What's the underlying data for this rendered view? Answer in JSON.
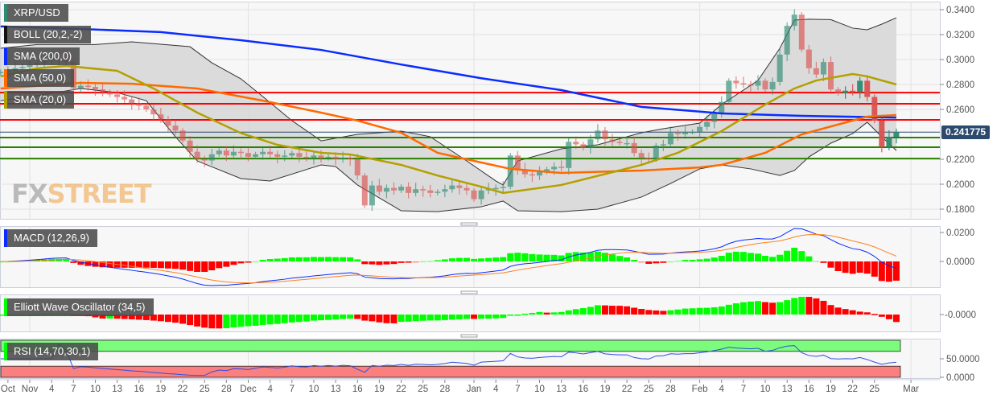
{
  "legend": {
    "symbol": {
      "label": "XRP/USD",
      "color": "#2e8b72"
    },
    "boll": {
      "label": "BOLL (20,2,-2)",
      "color": "#111111"
    },
    "sma200": {
      "label": "SMA (200,0)",
      "color": "#0a2cff"
    },
    "sma50": {
      "label": "SMA (50,0)",
      "color": "#ff6a00"
    },
    "sma20": {
      "label": "SMA (20,0)",
      "color": "#b3a000"
    },
    "macd": {
      "label": "MACD (12,26,9)",
      "color": "#0a2cff"
    },
    "ewo": {
      "label": "Elliott Wave Oscillator (34,5)",
      "color": "#00ff00"
    },
    "rsi": {
      "label": "RSI (14,70,30,1)",
      "color": "#00ff00"
    }
  },
  "watermark": {
    "part1": "FX",
    "part2": "STREET"
  },
  "colors": {
    "up": "#2e8b72",
    "down": "#d9534f",
    "hist_up": "#00ff00",
    "hist_down": "#ff0000",
    "resistance": "#ff0000",
    "support": "#2a8000",
    "price_line": "#2c4a6e"
  },
  "chart_data": {
    "type": "candlestick",
    "symbol": "XRP/USD",
    "interval": "daily",
    "start_date": "2019-10-28",
    "closes": [
      0.29,
      0.291,
      0.293,
      0.294,
      0.296,
      0.297,
      0.299,
      0.301,
      0.3,
      0.298,
      0.277,
      0.279,
      0.278,
      0.276,
      0.274,
      0.272,
      0.27,
      0.268,
      0.265,
      0.263,
      0.26,
      0.256,
      0.252,
      0.247,
      0.243,
      0.235,
      0.226,
      0.22,
      0.219,
      0.224,
      0.227,
      0.223,
      0.226,
      0.225,
      0.222,
      0.224,
      0.226,
      0.224,
      0.222,
      0.223,
      0.225,
      0.222,
      0.221,
      0.223,
      0.221,
      0.222,
      0.22,
      0.221,
      0.22,
      0.207,
      0.183,
      0.199,
      0.194,
      0.197,
      0.195,
      0.198,
      0.193,
      0.196,
      0.195,
      0.193,
      0.194,
      0.196,
      0.199,
      0.197,
      0.195,
      0.188,
      0.195,
      0.196,
      0.197,
      0.198,
      0.223,
      0.212,
      0.208,
      0.207,
      0.21,
      0.212,
      0.214,
      0.213,
      0.234,
      0.232,
      0.229,
      0.236,
      0.243,
      0.236,
      0.234,
      0.233,
      0.233,
      0.225,
      0.221,
      0.22,
      0.231,
      0.232,
      0.241,
      0.24,
      0.242,
      0.242,
      0.246,
      0.25,
      0.257,
      0.266,
      0.283,
      0.281,
      0.28,
      0.279,
      0.283,
      0.276,
      0.282,
      0.304,
      0.327,
      0.336,
      0.308,
      0.293,
      0.288,
      0.298,
      0.276,
      0.273,
      0.275,
      0.274,
      0.283,
      0.27,
      0.251,
      0.23,
      0.238,
      0.241775
    ],
    "current_price": "0.241775",
    "y_axis": {
      "range": [
        0.17,
        0.345
      ],
      "ticks": [
        "0.3400",
        "0.3200",
        "0.3000",
        "0.2800",
        "0.2600",
        "0.2200",
        "0.2000",
        "0.1800"
      ]
    },
    "horizontal_levels": {
      "resistance": [
        0.2735,
        0.2645,
        0.2516
      ],
      "support": [
        0.2374,
        0.2297,
        0.2206
      ]
    },
    "indicators": {
      "sma200": [
        [
          "2019-10-28",
          0.3265
        ],
        [
          "2019-11-08",
          0.3245
        ],
        [
          "2019-11-19",
          0.322
        ],
        [
          "2019-11-30",
          0.3155
        ],
        [
          "2019-12-11",
          0.3077
        ],
        [
          "2019-12-22",
          0.296
        ],
        [
          "2020-01-02",
          0.285
        ],
        [
          "2020-01-13",
          0.2755
        ],
        [
          "2020-01-24",
          0.262
        ],
        [
          "2020-02-04",
          0.2568
        ],
        [
          "2020-02-15",
          0.2548
        ],
        [
          "2020-02-28",
          0.2535
        ]
      ],
      "sma50": [
        [
          "2019-10-28",
          0.2768
        ],
        [
          "2019-11-08",
          0.2813
        ],
        [
          "2019-11-15",
          0.2806
        ],
        [
          "2019-11-24",
          0.2768
        ],
        [
          "2019-12-03",
          0.267
        ],
        [
          "2019-12-11",
          0.2574
        ],
        [
          "2019-12-16",
          0.251
        ],
        [
          "2019-12-22",
          0.2413
        ],
        [
          "2019-12-27",
          0.2252
        ],
        [
          "2020-01-02",
          0.2174
        ],
        [
          "2020-01-06",
          0.2123
        ],
        [
          "2020-01-13",
          0.209
        ],
        [
          "2020-01-24",
          0.211
        ],
        [
          "2020-02-01",
          0.2135
        ],
        [
          "2020-02-04",
          0.2155
        ],
        [
          "2020-02-10",
          0.2252
        ],
        [
          "2020-02-15",
          0.24
        ],
        [
          "2020-02-24",
          0.2542
        ],
        [
          "2020-02-28",
          0.2555
        ]
      ],
      "sma20": [
        [
          "2019-10-28",
          0.2865
        ],
        [
          "2019-11-02",
          0.293
        ],
        [
          "2019-11-06",
          0.2948
        ],
        [
          "2019-11-13",
          0.291
        ],
        [
          "2019-11-18",
          0.2768
        ],
        [
          "2019-11-24",
          0.2574
        ],
        [
          "2019-11-30",
          0.241
        ],
        [
          "2019-12-05",
          0.2316
        ],
        [
          "2019-12-11",
          0.2252
        ],
        [
          "2019-12-15",
          0.2239
        ],
        [
          "2019-12-22",
          0.2155
        ],
        [
          "2019-12-27",
          0.207
        ],
        [
          "2020-01-02",
          0.198
        ],
        [
          "2020-01-05",
          0.193
        ],
        [
          "2020-01-13",
          0.1994
        ],
        [
          "2020-01-24",
          0.2155
        ],
        [
          "2020-01-29",
          0.2252
        ],
        [
          "2020-02-04",
          0.2426
        ],
        [
          "2020-02-10",
          0.2639
        ],
        [
          "2020-02-14",
          0.2768
        ],
        [
          "2020-02-17",
          0.2832
        ],
        [
          "2020-02-22",
          0.2884
        ],
        [
          "2020-02-24",
          0.2865
        ],
        [
          "2020-02-28",
          0.28
        ]
      ],
      "boll_upper": [
        [
          "2019-10-28",
          0.309
        ],
        [
          "2019-11-02",
          0.312
        ],
        [
          "2019-11-10",
          0.312
        ],
        [
          "2019-11-15",
          0.3142
        ],
        [
          "2019-11-23",
          0.3103
        ],
        [
          "2019-11-26",
          0.2974
        ],
        [
          "2019-11-30",
          0.2845
        ],
        [
          "2019-12-03",
          0.2703
        ],
        [
          "2019-12-07",
          0.251
        ],
        [
          "2019-12-11",
          0.2348
        ],
        [
          "2019-12-16",
          0.24
        ],
        [
          "2019-12-22",
          0.2426
        ],
        [
          "2019-12-26",
          0.2381
        ],
        [
          "2019-12-31",
          0.2187
        ],
        [
          "2020-01-04",
          0.2026
        ],
        [
          "2020-01-05",
          0.1994
        ],
        [
          "2020-01-07",
          0.2187
        ],
        [
          "2020-01-13",
          0.2284
        ],
        [
          "2020-01-18",
          0.2316
        ],
        [
          "2020-01-24",
          0.2413
        ],
        [
          "2020-01-27",
          0.2445
        ],
        [
          "2020-02-01",
          0.249
        ],
        [
          "2020-02-04",
          0.2639
        ],
        [
          "2020-02-09",
          0.2832
        ],
        [
          "2020-02-12",
          0.309
        ],
        [
          "2020-02-14",
          0.3316
        ],
        [
          "2020-02-16",
          0.3323
        ],
        [
          "2020-02-19",
          0.332
        ],
        [
          "2020-02-22",
          0.3252
        ],
        [
          "2020-02-24",
          0.3239
        ],
        [
          "2020-02-26",
          0.3284
        ],
        [
          "2020-02-28",
          0.3335
        ]
      ],
      "boll_lower": [
        [
          "2019-10-28",
          0.267
        ],
        [
          "2019-11-02",
          0.271
        ],
        [
          "2019-11-08",
          0.2768
        ],
        [
          "2019-11-13",
          0.2735
        ],
        [
          "2019-11-17",
          0.267
        ],
        [
          "2019-11-21",
          0.238
        ],
        [
          "2019-11-24",
          0.2187
        ],
        [
          "2019-11-30",
          0.2045
        ],
        [
          "2019-12-04",
          0.2026
        ],
        [
          "2019-12-11",
          0.2155
        ],
        [
          "2019-12-13",
          0.2142
        ],
        [
          "2019-12-16",
          0.1994
        ],
        [
          "2019-12-22",
          0.1787
        ],
        [
          "2019-12-27",
          0.178
        ],
        [
          "2020-01-02",
          0.1819
        ],
        [
          "2020-01-05",
          0.1865
        ],
        [
          "2020-01-07",
          0.1787
        ],
        [
          "2020-01-13",
          0.178
        ],
        [
          "2020-01-18",
          0.18
        ],
        [
          "2020-01-24",
          0.1897
        ],
        [
          "2020-01-28",
          0.2006
        ],
        [
          "2020-02-01",
          0.2123
        ],
        [
          "2020-02-04",
          0.2155
        ],
        [
          "2020-02-08",
          0.2123
        ],
        [
          "2020-02-12",
          0.207
        ],
        [
          "2020-02-14",
          0.211
        ],
        [
          "2020-02-16",
          0.2219
        ],
        [
          "2020-02-19",
          0.2329
        ],
        [
          "2020-02-22",
          0.2406
        ],
        [
          "2020-02-24",
          0.2497
        ],
        [
          "2020-02-26",
          0.238
        ],
        [
          "2020-02-28",
          0.227
        ]
      ]
    },
    "macd_axis_ticks": [
      "0.0200",
      "0.0000"
    ],
    "ewo_axis_ticks": [
      "-0.0000"
    ],
    "rsi_axis_ticks": [
      "50.0000",
      "0.0000"
    ],
    "rsi_levels": {
      "overbought": 70,
      "oversold": 30
    },
    "x_axis_labels": [
      [
        "Oct",
        "2019-10-29"
      ],
      [
        "Nov",
        "2019-11-01"
      ],
      [
        "4",
        "2019-11-04"
      ],
      [
        "7",
        "2019-11-07"
      ],
      [
        "10",
        "2019-11-10"
      ],
      [
        "13",
        "2019-11-13"
      ],
      [
        "16",
        "2019-11-16"
      ],
      [
        "19",
        "2019-11-19"
      ],
      [
        "22",
        "2019-11-22"
      ],
      [
        "25",
        "2019-11-25"
      ],
      [
        "28",
        "2019-11-28"
      ],
      [
        "Dec",
        "2019-12-01"
      ],
      [
        "4",
        "2019-12-04"
      ],
      [
        "7",
        "2019-12-07"
      ],
      [
        "10",
        "2019-12-10"
      ],
      [
        "13",
        "2019-12-13"
      ],
      [
        "16",
        "2019-12-16"
      ],
      [
        "19",
        "2019-12-19"
      ],
      [
        "22",
        "2019-12-22"
      ],
      [
        "25",
        "2019-12-25"
      ],
      [
        "28",
        "2019-12-28"
      ],
      [
        "Jan",
        "2020-01-01"
      ],
      [
        "4",
        "2020-01-04"
      ],
      [
        "7",
        "2020-01-07"
      ],
      [
        "10",
        "2020-01-10"
      ],
      [
        "13",
        "2020-01-13"
      ],
      [
        "16",
        "2020-01-16"
      ],
      [
        "19",
        "2020-01-19"
      ],
      [
        "22",
        "2020-01-22"
      ],
      [
        "25",
        "2020-01-25"
      ],
      [
        "28",
        "2020-01-28"
      ],
      [
        "Feb",
        "2020-02-01"
      ],
      [
        "4",
        "2020-02-04"
      ],
      [
        "7",
        "2020-02-07"
      ],
      [
        "10",
        "2020-02-10"
      ],
      [
        "13",
        "2020-02-13"
      ],
      [
        "16",
        "2020-02-16"
      ],
      [
        "19",
        "2020-02-19"
      ],
      [
        "22",
        "2020-02-22"
      ],
      [
        "25",
        "2020-02-25"
      ],
      [
        "Mar",
        "2020-03-01"
      ]
    ]
  }
}
